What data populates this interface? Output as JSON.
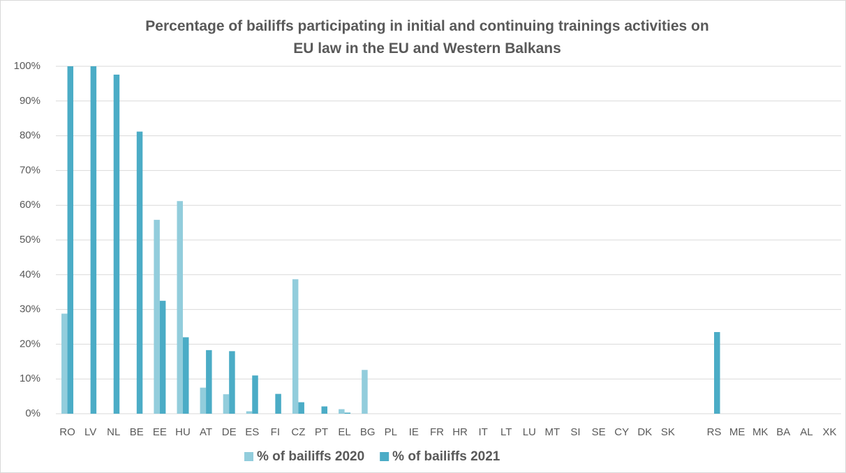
{
  "chart_data": {
    "type": "bar",
    "title": "Percentage of bailiffs participating in initial and continuing trainings activities on EU law in the EU and Western Balkans",
    "categories": [
      "RO",
      "LV",
      "NL",
      "BE",
      "EE",
      "HU",
      "AT",
      "DE",
      "ES",
      "FI",
      "CZ",
      "PT",
      "EL",
      "BG",
      "PL",
      "IE",
      "FR",
      "HR",
      "IT",
      "LT",
      "LU",
      "MT",
      "SI",
      "SE",
      "CY",
      "DK",
      "SK",
      null,
      "RS",
      "ME",
      "MK",
      "BA",
      "AL",
      "XK"
    ],
    "series": [
      {
        "name": "% of bailiffs 2020",
        "color": "#92cddc",
        "values": [
          28.8,
          0,
          0,
          0,
          55.8,
          61.2,
          7.5,
          5.6,
          0.7,
          0,
          38.7,
          0,
          1.3,
          12.6,
          0,
          0,
          0,
          0,
          0,
          0,
          0,
          0,
          0,
          0,
          0,
          0,
          0,
          null,
          0,
          0,
          0,
          0,
          0,
          0
        ]
      },
      {
        "name": "% of bailiffs 2021",
        "color": "#4bacc6",
        "values": [
          100,
          100,
          97.6,
          81.2,
          32.5,
          22,
          18.3,
          18,
          11,
          5.7,
          3.3,
          2.1,
          0.3,
          0,
          0,
          0,
          0,
          0,
          0,
          0,
          0,
          0,
          0,
          0,
          0,
          0,
          0,
          null,
          23.5,
          0,
          0,
          0,
          0,
          0
        ]
      }
    ],
    "ylim": [
      0,
      100
    ],
    "yticks": [
      {
        "value": 0,
        "label": "0%"
      },
      {
        "value": 10,
        "label": "10%"
      },
      {
        "value": 20,
        "label": "20%"
      },
      {
        "value": 30,
        "label": "30%"
      },
      {
        "value": 40,
        "label": "40%"
      },
      {
        "value": 50,
        "label": "50%"
      },
      {
        "value": 60,
        "label": "60%"
      },
      {
        "value": 70,
        "label": "70%"
      },
      {
        "value": 80,
        "label": "80%"
      },
      {
        "value": 90,
        "label": "90%"
      },
      {
        "value": 100,
        "label": "100%"
      }
    ],
    "grid": true,
    "legend": "bottom"
  }
}
